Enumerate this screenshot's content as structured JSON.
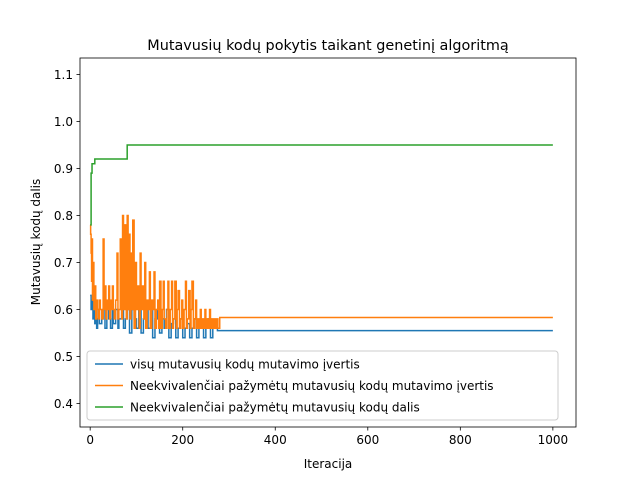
{
  "chart_data": {
    "type": "line",
    "title": "Mutavusių kodų pokytis taikant genetinį algoritmą",
    "xlabel": "Iteracija",
    "ylabel": "Mutavusių kodų dalis",
    "xlim": [
      -22,
      1050
    ],
    "ylim": [
      0.35,
      1.135
    ],
    "xticks": [
      0,
      200,
      400,
      600,
      800,
      1000
    ],
    "yticks": [
      0.4,
      0.5,
      0.6,
      0.7,
      0.8,
      0.9,
      1.0,
      1.1
    ],
    "xtick_labels": [
      "0",
      "200",
      "400",
      "600",
      "800",
      "1000"
    ],
    "ytick_labels": [
      "0.4",
      "0.5",
      "0.6",
      "0.7",
      "0.8",
      "0.9",
      "1.0",
      "1.1"
    ],
    "grid": false,
    "legend_position": "lower-left",
    "series": [
      {
        "name": "visų mutavusių kodų mutavimo įvertis",
        "color": "#1f77b4",
        "x": [
          0,
          2,
          4,
          6,
          8,
          10,
          12,
          14,
          16,
          18,
          20,
          25,
          28,
          32,
          36,
          40,
          44,
          48,
          50,
          55,
          60,
          62,
          68,
          72,
          76,
          80,
          85,
          90,
          95,
          100,
          105,
          110,
          115,
          120,
          125,
          130,
          135,
          140,
          145,
          150,
          155,
          160,
          165,
          170,
          175,
          180,
          185,
          190,
          195,
          200,
          205,
          210,
          215,
          220,
          225,
          230,
          235,
          240,
          245,
          250,
          255,
          260,
          265,
          270,
          275,
          300,
          400,
          600,
          800,
          1000
        ],
        "y": [
          0.63,
          0.6,
          0.62,
          0.58,
          0.6,
          0.57,
          0.6,
          0.56,
          0.58,
          0.6,
          0.57,
          0.58,
          0.6,
          0.56,
          0.6,
          0.58,
          0.56,
          0.61,
          0.57,
          0.6,
          0.56,
          0.58,
          0.6,
          0.56,
          0.58,
          0.6,
          0.55,
          0.6,
          0.58,
          0.56,
          0.6,
          0.55,
          0.58,
          0.6,
          0.56,
          0.6,
          0.54,
          0.58,
          0.6,
          0.55,
          0.58,
          0.56,
          0.6,
          0.54,
          0.57,
          0.58,
          0.54,
          0.56,
          0.58,
          0.54,
          0.56,
          0.57,
          0.54,
          0.56,
          0.58,
          0.54,
          0.56,
          0.57,
          0.54,
          0.56,
          0.58,
          0.54,
          0.56,
          0.57,
          0.555,
          0.555,
          0.555,
          0.555,
          0.555,
          0.555
        ]
      },
      {
        "name": "Neekvivalenčiai pažymėtų mutavusių kodų mutavimo įvertis",
        "color": "#ff7f0e",
        "x": [
          0,
          1,
          2,
          3,
          4,
          5,
          6,
          8,
          10,
          12,
          14,
          16,
          18,
          20,
          22,
          25,
          28,
          30,
          32,
          34,
          36,
          38,
          40,
          42,
          44,
          46,
          48,
          50,
          52,
          55,
          58,
          60,
          62,
          65,
          68,
          70,
          72,
          75,
          78,
          80,
          82,
          84,
          86,
          88,
          90,
          92,
          95,
          98,
          100,
          103,
          106,
          108,
          110,
          113,
          116,
          118,
          120,
          123,
          126,
          128,
          130,
          133,
          136,
          138,
          140,
          143,
          146,
          148,
          150,
          153,
          156,
          158,
          160,
          163,
          166,
          168,
          170,
          173,
          176,
          178,
          180,
          183,
          186,
          188,
          190,
          193,
          196,
          198,
          200,
          203,
          206,
          208,
          210,
          213,
          216,
          218,
          220,
          223,
          226,
          228,
          230,
          233,
          236,
          238,
          240,
          243,
          246,
          248,
          250,
          253,
          256,
          258,
          260,
          263,
          266,
          268,
          270,
          273,
          276,
          280,
          400,
          600,
          800,
          1000
        ],
        "y": [
          0.78,
          0.76,
          0.72,
          0.66,
          0.75,
          0.62,
          0.7,
          0.6,
          0.65,
          0.58,
          0.62,
          0.6,
          0.58,
          0.62,
          0.6,
          0.58,
          0.75,
          0.6,
          0.65,
          0.58,
          0.62,
          0.6,
          0.65,
          0.58,
          0.62,
          0.6,
          0.65,
          0.6,
          0.58,
          0.62,
          0.72,
          0.58,
          0.6,
          0.75,
          0.58,
          0.8,
          0.6,
          0.78,
          0.58,
          0.8,
          0.6,
          0.76,
          0.58,
          0.72,
          0.6,
          0.79,
          0.56,
          0.7,
          0.6,
          0.65,
          0.56,
          0.72,
          0.6,
          0.65,
          0.58,
          0.7,
          0.56,
          0.62,
          0.6,
          0.68,
          0.56,
          0.62,
          0.6,
          0.68,
          0.56,
          0.6,
          0.62,
          0.56,
          0.66,
          0.56,
          0.6,
          0.66,
          0.58,
          0.56,
          0.6,
          0.66,
          0.56,
          0.6,
          0.66,
          0.56,
          0.58,
          0.66,
          0.56,
          0.6,
          0.64,
          0.56,
          0.58,
          0.62,
          0.56,
          0.6,
          0.66,
          0.56,
          0.58,
          0.64,
          0.56,
          0.6,
          0.66,
          0.56,
          0.58,
          0.62,
          0.56,
          0.58,
          0.56,
          0.6,
          0.56,
          0.58,
          0.56,
          0.6,
          0.56,
          0.58,
          0.56,
          0.6,
          0.56,
          0.58,
          0.56,
          0.58,
          0.56,
          0.58,
          0.56,
          0.583,
          0.583,
          0.583,
          0.583,
          0.583
        ]
      },
      {
        "name": "Neekvivalenčiai pažymėtų mutavusių kodų dalis",
        "color": "#2ca02c",
        "x": [
          0,
          2,
          4,
          6,
          9,
          10,
          79,
          80,
          1000
        ],
        "y": [
          0.78,
          0.89,
          0.91,
          0.91,
          0.91,
          0.92,
          0.92,
          0.95,
          0.95
        ]
      }
    ]
  }
}
